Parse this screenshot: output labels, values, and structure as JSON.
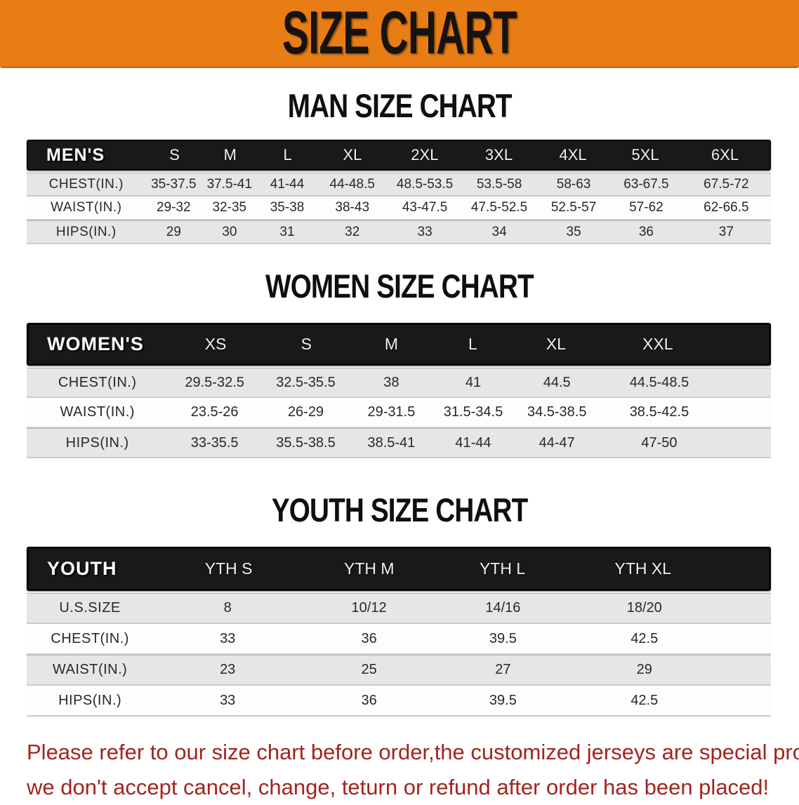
{
  "banner": {
    "title": "SIZE CHART",
    "bg_color": "#e87d15",
    "text_color": "#161310"
  },
  "sections": [
    {
      "id": "men",
      "title": "MAN SIZE CHART",
      "header_label": "MEN'S",
      "columns": [
        "S",
        "M",
        "L",
        "XL",
        "2XL",
        "3XL",
        "4XL",
        "5XL",
        "6XL"
      ],
      "rows": [
        {
          "label": "CHEST(IN.)",
          "values": [
            "35-37.5",
            "37.5-41",
            "41-44",
            "44-48.5",
            "48.5-53.5",
            "53.5-58",
            "58-63",
            "63-67.5",
            "67.5-72"
          ]
        },
        {
          "label": "WAIST(IN.)",
          "values": [
            "29-32",
            "32-35",
            "35-38",
            "38-43",
            "43-47.5",
            "47.5-52.5",
            "52.5-57",
            "57-62",
            "62-66.5"
          ]
        },
        {
          "label": "HIPS(IN.)",
          "values": [
            "29",
            "30",
            "31",
            "32",
            "33",
            "34",
            "35",
            "36",
            "37"
          ]
        }
      ]
    },
    {
      "id": "women",
      "title": "WOMEN SIZE CHART",
      "header_label": "WOMEN'S",
      "columns": [
        "XS",
        "S",
        "M",
        "L",
        "XL",
        "XXL"
      ],
      "rows": [
        {
          "label": "CHEST(IN.)",
          "values": [
            "29.5-32.5",
            "32.5-35.5",
            "38",
            "41",
            "44.5",
            "44.5-48.5"
          ]
        },
        {
          "label": "WAIST(IN.)",
          "values": [
            "23.5-26",
            "26-29",
            "29-31.5",
            "31.5-34.5",
            "34.5-38.5",
            "38.5-42.5"
          ]
        },
        {
          "label": "HIPS(IN.)",
          "values": [
            "33-35.5",
            "35.5-38.5",
            "38.5-41",
            "41-44",
            "44-47",
            "47-50"
          ]
        }
      ]
    },
    {
      "id": "youth",
      "title": "YOUTH SIZE CHART",
      "header_label": "YOUTH",
      "columns": [
        "YTH S",
        "YTH M",
        "YTH L",
        "YTH XL"
      ],
      "rows": [
        {
          "label": "U.S.SIZE",
          "values": [
            "8",
            "10/12",
            "14/16",
            "18/20"
          ]
        },
        {
          "label": "CHEST(IN.)",
          "values": [
            "33",
            "36",
            "39.5",
            "42.5"
          ]
        },
        {
          "label": "WAIST(IN.)",
          "values": [
            "23",
            "25",
            "27",
            "29"
          ]
        },
        {
          "label": "HIPS(IN.)",
          "values": [
            "33",
            "36",
            "39.5",
            "42.5"
          ]
        }
      ]
    }
  ],
  "disclaimer": {
    "line1": "Please refer to our size chart before order,the customized jerseys are special products,",
    "line2": "we don't accept cancel, change, teturn or refund after order has been placed!",
    "color": "#a2241e"
  }
}
